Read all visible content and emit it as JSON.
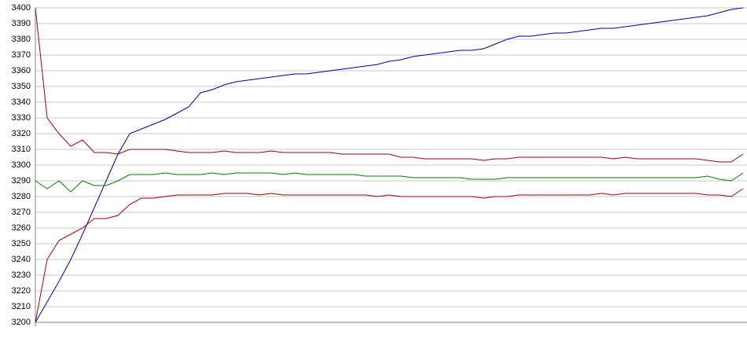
{
  "chart_data": {
    "type": "line",
    "categories": [
      null,
      null,
      null,
      null,
      null,
      null,
      null,
      null,
      null,
      null,
      null,
      null,
      null,
      null,
      null,
      null,
      null,
      null,
      null,
      null,
      null,
      null,
      null,
      null,
      null,
      null,
      null,
      null,
      null,
      null,
      null,
      null,
      null,
      null,
      null,
      null,
      null,
      null,
      null,
      null,
      null,
      null,
      null,
      null,
      null,
      null,
      null,
      null,
      null,
      null,
      null,
      null,
      null,
      null,
      null,
      null,
      null,
      null,
      null,
      null,
      null
    ],
    "series": [
      {
        "color": "#0000a8",
        "values": [
          3200,
          3213,
          3226,
          3240,
          3256,
          3273,
          3290,
          3307,
          3320,
          3323,
          3326,
          3329,
          3333,
          3337,
          3346,
          3348,
          3351,
          3353,
          3354,
          3355,
          3356,
          3357,
          3358,
          3358,
          3359,
          3360,
          3361,
          3362,
          3363,
          3364,
          3366,
          3367,
          3369,
          3370,
          3371,
          3372,
          3373,
          3373,
          3374,
          3377,
          3380,
          3382,
          3382,
          3383,
          3384,
          3384,
          3385,
          3386,
          3387,
          3387,
          3388,
          3389,
          3390,
          3391,
          3392,
          3393,
          3394,
          3395,
          3397,
          3399,
          3400
        ]
      },
      {
        "color": "#a80000",
        "values": [
          3400,
          3330,
          3320,
          3312,
          3316,
          3308,
          3308,
          3307,
          3310,
          3310,
          3310,
          3310,
          3309,
          3308,
          3308,
          3308,
          3309,
          3308,
          3308,
          3308,
          3309,
          3308,
          3308,
          3308,
          3308,
          3308,
          3307,
          3307,
          3307,
          3307,
          3307,
          3305,
          3305,
          3304,
          3304,
          3304,
          3304,
          3304,
          3303,
          3304,
          3304,
          3305,
          3305,
          3305,
          3305,
          3305,
          3305,
          3305,
          3305,
          3304,
          3305,
          3304,
          3304,
          3304,
          3304,
          3304,
          3304,
          3303,
          3302,
          3302,
          3307
        ]
      },
      {
        "color": "#008000",
        "values": [
          3290,
          3285,
          3290,
          3283,
          3290,
          3287,
          3287,
          3290,
          3294,
          3294,
          3294,
          3295,
          3294,
          3294,
          3294,
          3295,
          3294,
          3295,
          3295,
          3295,
          3295,
          3294,
          3295,
          3294,
          3294,
          3294,
          3294,
          3294,
          3293,
          3293,
          3293,
          3293,
          3292,
          3292,
          3292,
          3292,
          3292,
          3291,
          3291,
          3291,
          3292,
          3292,
          3292,
          3292,
          3292,
          3292,
          3292,
          3292,
          3292,
          3292,
          3292,
          3292,
          3292,
          3292,
          3292,
          3292,
          3292,
          3293,
          3291,
          3290,
          3295
        ]
      },
      {
        "color": "#a80000",
        "values": [
          3200,
          3240,
          3252,
          3256,
          3260,
          3266,
          3266,
          3268,
          3275,
          3279,
          3279,
          3280,
          3281,
          3281,
          3281,
          3281,
          3282,
          3282,
          3282,
          3281,
          3282,
          3281,
          3281,
          3281,
          3281,
          3281,
          3281,
          3281,
          3281,
          3280,
          3281,
          3280,
          3280,
          3280,
          3280,
          3280,
          3280,
          3280,
          3279,
          3280,
          3280,
          3281,
          3281,
          3281,
          3281,
          3281,
          3281,
          3281,
          3282,
          3281,
          3282,
          3282,
          3282,
          3282,
          3282,
          3282,
          3282,
          3281,
          3281,
          3280,
          3285
        ]
      }
    ],
    "ylim": [
      3200,
      3400
    ],
    "yticks": [
      3200,
      3210,
      3220,
      3230,
      3240,
      3250,
      3260,
      3270,
      3280,
      3290,
      3300,
      3310,
      3320,
      3330,
      3340,
      3350,
      3360,
      3370,
      3380,
      3390,
      3400
    ],
    "grid": true
  }
}
